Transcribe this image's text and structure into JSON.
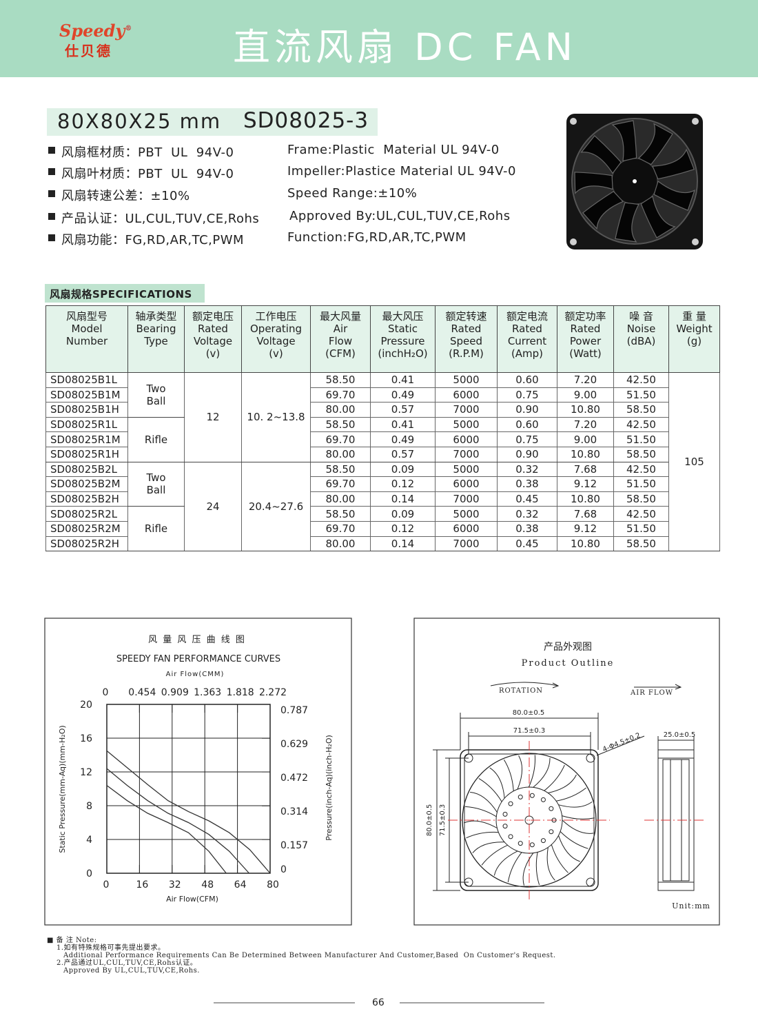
{
  "header": {
    "logo": "Speedy",
    "logo_mark": "®",
    "logo_cn": "仕贝德",
    "title": "直流风扇 DC FAN"
  },
  "product": {
    "size": "80X80X25 mm",
    "model": "SD08025-3"
  },
  "features": [
    {
      "cn": "风扇框材质：PBT  UL  94V-0",
      "en": "Frame:Plastic  Material UL 94V-0"
    },
    {
      "cn": "风扇叶材质：PBT  UL  94V-0",
      "en": "Impeller:Plastice Material UL 94V-0"
    },
    {
      "cn": "风扇转速公差：±10%",
      "en": "Speed Range:±10%"
    },
    {
      "cn": "产品认证：UL,CUL,TUV,CE,Rohs",
      "en": "Approved By:UL,CUL,TUV,CE,Rohs"
    },
    {
      "cn": "风扇功能：FG,RD,AR,TC,PWM",
      "en": "Function:FG,RD,AR,TC,PWM"
    }
  ],
  "specs": {
    "title": "风扇规格SPECIFICATIONS",
    "columns": [
      [
        "风扇型号",
        "Model",
        "Number"
      ],
      [
        "轴承类型",
        "Bearing",
        "Type"
      ],
      [
        "额定电压",
        "Rated",
        "Voltage",
        "(v)"
      ],
      [
        "工作电压",
        "Operating",
        "Voltage",
        "(v)"
      ],
      [
        "最大风量",
        "Air",
        "Flow",
        "(CFM)"
      ],
      [
        "最大风压",
        "Static",
        "Pressure",
        "(inchH₂O)"
      ],
      [
        "额定转速",
        "Rated",
        "Speed",
        "(R.P.M)"
      ],
      [
        "额定电流",
        "Rated",
        "Current",
        "(Amp)"
      ],
      [
        "额定功率",
        "Rated",
        "Power",
        "(Watt)"
      ],
      [
        "噪 音",
        "Noise",
        "(dBA)"
      ],
      [
        "重 量",
        "Weight",
        "(g)"
      ]
    ],
    "rows": [
      [
        "SD08025B1L",
        "Two\nBall",
        "12",
        "10. 2~13.8",
        "58.50",
        "0.41",
        "5000",
        "0.60",
        "7.20",
        "42.50",
        "105"
      ],
      [
        "SD08025B1M",
        "Two\nBall",
        "12",
        "10. 2~13.8",
        "69.70",
        "0.49",
        "6000",
        "0.75",
        "9.00",
        "51.50",
        "105"
      ],
      [
        "SD08025B1H",
        "Two\nBall",
        "12",
        "10. 2~13.8",
        "80.00",
        "0.57",
        "7000",
        "0.90",
        "10.80",
        "58.50",
        "105"
      ],
      [
        "SD08025R1L",
        "Rifle",
        "12",
        "10. 2~13.8",
        "58.50",
        "0.41",
        "5000",
        "0.60",
        "7.20",
        "42.50",
        "105"
      ],
      [
        "SD08025R1M",
        "Rifle",
        "12",
        "10. 2~13.8",
        "69.70",
        "0.49",
        "6000",
        "0.75",
        "9.00",
        "51.50",
        "105"
      ],
      [
        "SD08025R1H",
        "Rifle",
        "12",
        "10. 2~13.8",
        "80.00",
        "0.57",
        "7000",
        "0.90",
        "10.80",
        "58.50",
        "105"
      ],
      [
        "SD08025B2L",
        "Two\nBall",
        "24",
        "20.4~27.6",
        "58.50",
        "0.09",
        "5000",
        "0.32",
        "7.68",
        "42.50",
        "105"
      ],
      [
        "SD08025B2M",
        "Two\nBall",
        "24",
        "20.4~27.6",
        "69.70",
        "0.12",
        "6000",
        "0.38",
        "9.12",
        "51.50",
        "105"
      ],
      [
        "SD08025B2H",
        "Two\nBall",
        "24",
        "20.4~27.6",
        "80.00",
        "0.14",
        "7000",
        "0.45",
        "10.80",
        "58.50",
        "105"
      ],
      [
        "SD08025R2L",
        "Rifle",
        "24",
        "20.4~27.6",
        "58.50",
        "0.09",
        "5000",
        "0.32",
        "7.68",
        "42.50",
        "105"
      ],
      [
        "SD08025R2M",
        "Rifle",
        "24",
        "20.4~27.6",
        "69.70",
        "0.12",
        "6000",
        "0.38",
        "9.12",
        "51.50",
        "105"
      ],
      [
        "SD08025R2H",
        "Rifle",
        "24",
        "20.4~27.6",
        "80.00",
        "0.14",
        "7000",
        "0.45",
        "10.80",
        "58.50",
        "105"
      ]
    ]
  },
  "performance_chart": {
    "type": "line",
    "title": "风 量 风 压 曲 线 图",
    "subtitle": "SPEEDY FAN PERFORMANCE CURVES",
    "x2_label": "Air Flow(CMM)",
    "x_label": "Air Flow(CFM)",
    "y_label": "Static Pressure(mm-Aq)(mm-H₂O)",
    "y2_label": "Pressure(inch-Aq)(inch-H₂O)",
    "xlim": [
      0,
      80
    ],
    "xticks": [
      0,
      16,
      32,
      48,
      64,
      80
    ],
    "x2lim": [
      0,
      2.272
    ],
    "x2ticks": [
      0,
      0.454,
      0.909,
      1.363,
      1.818,
      2.272
    ],
    "ylim": [
      0,
      20
    ],
    "yticks": [
      0,
      4,
      8,
      12,
      16,
      20
    ],
    "y2lim": [
      0,
      0.787
    ],
    "y2ticks": [
      0,
      0.157,
      0.314,
      0.472,
      0.629,
      0.787
    ],
    "grid": true,
    "color": "#333",
    "series": [
      {
        "x": [
          0,
          10,
          20,
          30,
          40,
          50,
          60,
          70,
          80
        ],
        "values": [
          14.5,
          12.5,
          10.5,
          8.6,
          7.3,
          6.2,
          4.8,
          2.8,
          0
        ]
      },
      {
        "x": [
          0,
          10,
          20,
          30,
          40,
          50,
          60,
          69.7
        ],
        "values": [
          12.4,
          10.4,
          8.6,
          7.1,
          6.0,
          4.6,
          2.6,
          0
        ]
      },
      {
        "x": [
          0,
          10,
          20,
          30,
          40,
          50,
          58.5
        ],
        "values": [
          10.4,
          8.6,
          7.1,
          6.0,
          4.8,
          2.6,
          0
        ]
      }
    ]
  },
  "outline": {
    "title_cn": "产品外观图",
    "title_en": "Product Outline",
    "rotation": "ROTATION",
    "air_flow": "AIR FLOW",
    "outer": "80.0±0.5",
    "hole_pitch": "71.5±0.3",
    "holes": "4-Φ4.5±0.2",
    "thickness": "25.0±0.5",
    "unit": "Unit:mm"
  },
  "notes": {
    "heading": "备 注 Note:",
    "items": [
      {
        "cn": "1.如有特殊规格可事先提出要求。",
        "en": "Additional Performance Requirements Can Be Determined Between Manufacturer And Customer,Based  On Customer's Request."
      },
      {
        "cn": "2.产品通过UL,CUL,TUV,CE,Rohs认证。",
        "en": "Approved By UL,CUL,TUV,CE,Rohs."
      }
    ]
  },
  "page_number": "66"
}
